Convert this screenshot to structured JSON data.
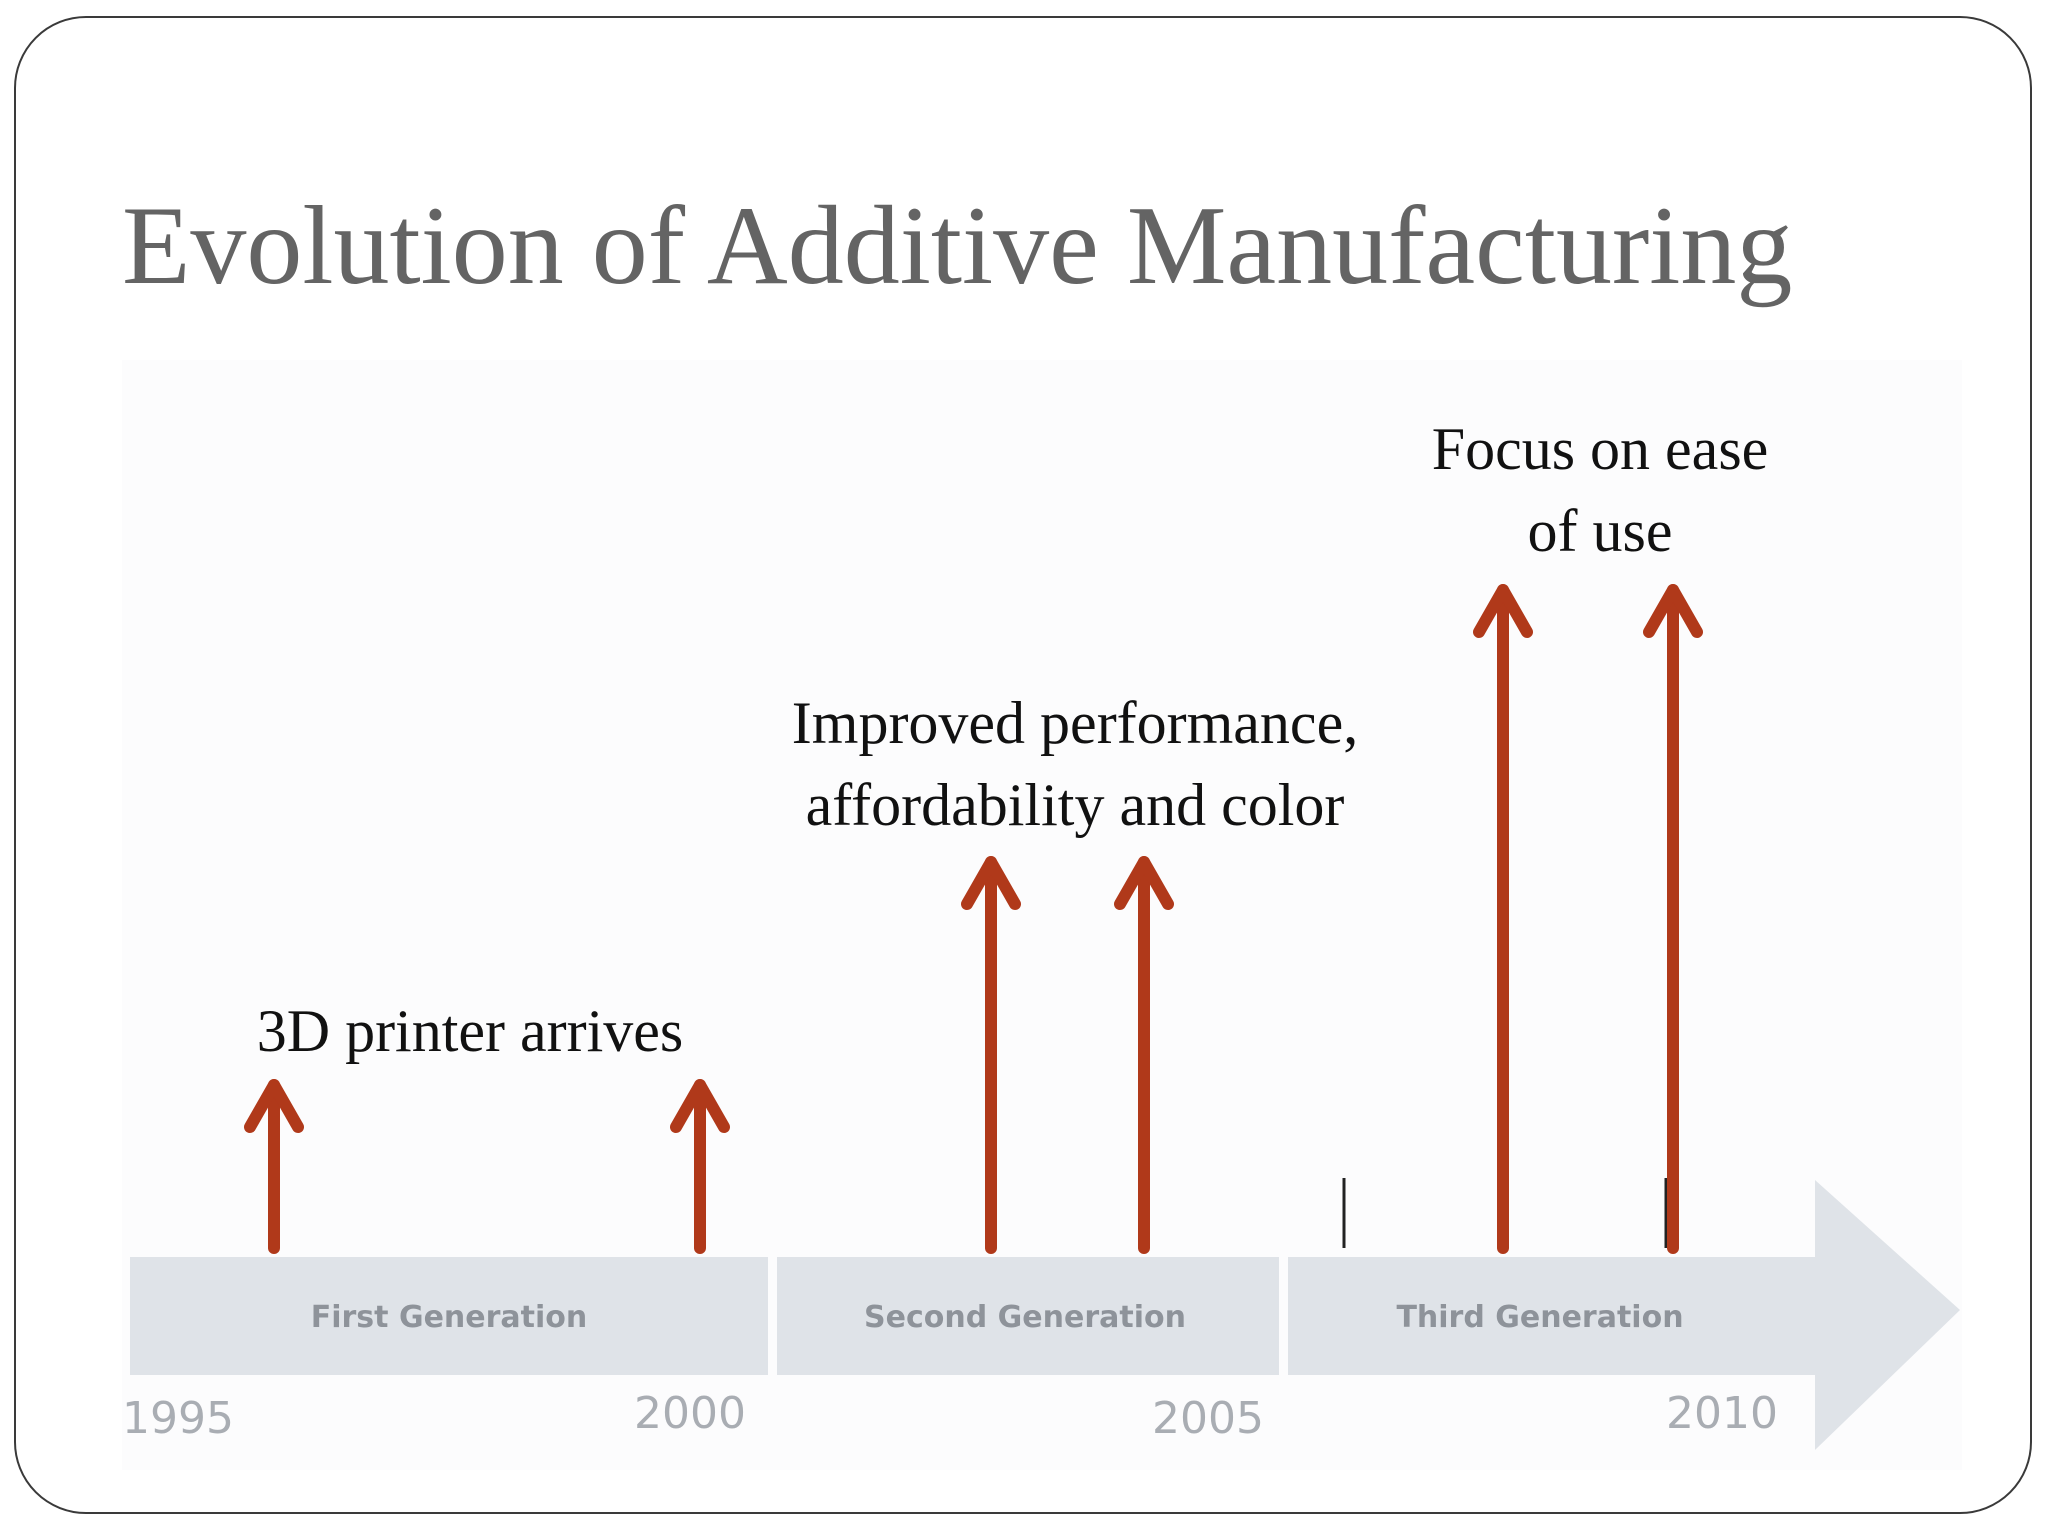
{
  "slide": {
    "title": "Evolution of Additive Manufacturing"
  },
  "timeline": {
    "generations": [
      {
        "label": "First Generation",
        "start_year": 1995,
        "end_year": 2000
      },
      {
        "label": "Second Generation",
        "start_year": 2000,
        "end_year": 2005
      },
      {
        "label": "Third Generation",
        "start_year": 2005,
        "end_year": 2010
      }
    ],
    "years": [
      "1995",
      "2000",
      "2005",
      "2010"
    ],
    "annotations": [
      {
        "lines": [
          "3D printer arrives"
        ],
        "generation": "First Generation"
      },
      {
        "lines": [
          "Improved performance,",
          "affordability and color"
        ],
        "generation": "Second Generation"
      },
      {
        "lines": [
          "Focus on ease",
          "of use"
        ],
        "generation": "Third Generation"
      }
    ],
    "colors": {
      "arrow": "#b0391a",
      "band": "#dfe3e8",
      "band_text": "#8e939a",
      "year_text": "#a9adb3",
      "tick": "#222222"
    }
  }
}
